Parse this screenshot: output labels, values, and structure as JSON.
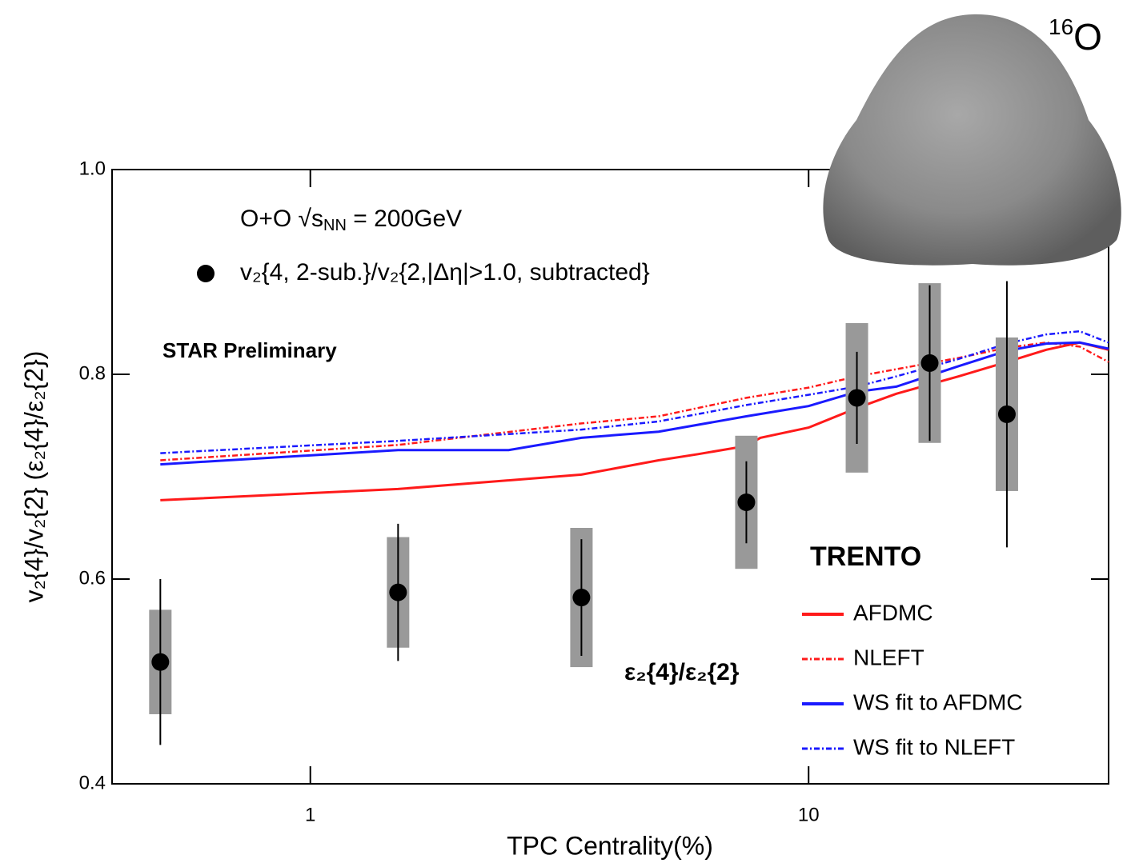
{
  "chart_data": {
    "type": "line",
    "x_label": "TPC Centrality(%)",
    "y_label": "v₂{4}/v₂{2} (ε₂{4}/ε₂{2})",
    "xscale": "log",
    "xlim": [
      0.4,
      40
    ],
    "xticks": [
      1,
      10
    ],
    "ylim": [
      0.4,
      1.0
    ],
    "yticks": [
      0.4,
      0.6,
      0.8,
      {
        "value": 1.0,
        "label": "1.0"
      }
    ],
    "system": {
      "text": "O+O √s",
      "sub": "NN",
      "rest": " = 200GeV"
    },
    "preliminary": "STAR Preliminary",
    "preliminary_color": "#ff1a1a",
    "nucleus": {
      "mass": "16",
      "symbol": "O"
    },
    "model_label": "ε₂{4}/ε₂{2}",
    "legend_title": "TRENTO",
    "points": {
      "name": "v₂{4, 2-sub.}/v₂{2,|Δη|>1.0, subtracted}",
      "color": "#000000",
      "sys_color": "#999999",
      "x": [
        0.5,
        1.5,
        3.5,
        7.5,
        12.5,
        17.5,
        25
      ],
      "values": [
        0.519,
        0.587,
        0.582,
        0.675,
        0.777,
        0.811,
        0.761
      ],
      "stat_err": [
        0.081,
        0.067,
        0.057,
        0.04,
        0.045,
        0.076,
        0.13
      ],
      "sys_err": [
        0.051,
        0.054,
        0.068,
        0.065,
        0.073,
        0.078,
        0.075
      ]
    },
    "series": [
      {
        "name": "AFDMC",
        "color": "#ff1a1a",
        "style": "solid",
        "x": [
          0.5,
          1.5,
          3.5,
          5,
          6,
          7.5,
          8,
          10,
          12.5,
          15,
          20,
          25,
          30,
          35,
          40
        ],
        "values": [
          0.677,
          0.688,
          0.702,
          0.716,
          0.722,
          0.73,
          0.738,
          0.748,
          0.767,
          0.781,
          0.798,
          0.812,
          0.824,
          0.831,
          0.824
        ]
      },
      {
        "name": "NLEFT",
        "color": "#ff1a1a",
        "style": "dashdot",
        "x": [
          0.5,
          1.5,
          3.5,
          5,
          7.5,
          10,
          12.5,
          15,
          20,
          25,
          30,
          35,
          40
        ],
        "values": [
          0.716,
          0.731,
          0.752,
          0.759,
          0.777,
          0.787,
          0.798,
          0.805,
          0.816,
          0.826,
          0.831,
          0.827,
          0.812
        ]
      },
      {
        "name": "WS fit to AFDMC",
        "color": "#1a1aff",
        "style": "solid",
        "x": [
          0.5,
          1.5,
          2.5,
          3.5,
          5,
          7.5,
          10,
          12.5,
          15,
          20,
          25,
          30,
          35,
          40
        ],
        "values": [
          0.712,
          0.726,
          0.726,
          0.738,
          0.744,
          0.759,
          0.769,
          0.783,
          0.788,
          0.808,
          0.823,
          0.83,
          0.831,
          0.825
        ]
      },
      {
        "name": "WS fit to NLEFT",
        "color": "#1a1aff",
        "style": "dashdot",
        "x": [
          0.5,
          1.5,
          3.5,
          5,
          7.5,
          10,
          12.5,
          15,
          20,
          25,
          30,
          35,
          40
        ],
        "values": [
          0.723,
          0.735,
          0.746,
          0.754,
          0.77,
          0.78,
          0.788,
          0.798,
          0.815,
          0.83,
          0.839,
          0.842,
          0.831
        ]
      }
    ]
  }
}
